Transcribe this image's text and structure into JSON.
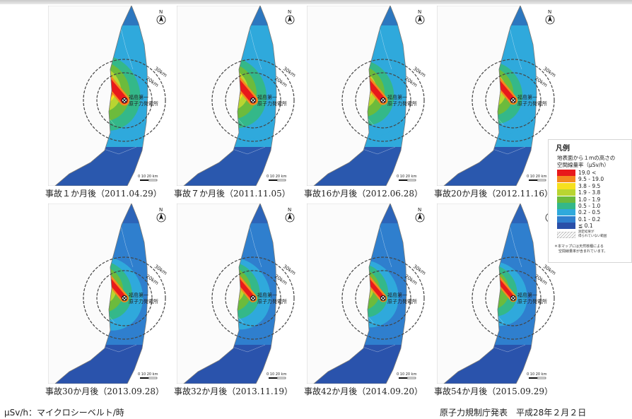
{
  "maps": [
    {
      "caption": "事故１か月後（2011.04.29）",
      "intensity": 1.0,
      "scale_text": "0  10  20 km",
      "north": "N",
      "label1": "福島第一",
      "label2": "原子力発電所",
      "ring1": "30km",
      "ring2": "20km"
    },
    {
      "caption": "事故７か月後（2011.11.05）",
      "intensity": 0.85,
      "scale_text": "0  10  20 km",
      "north": "N",
      "label1": "福島第一",
      "label2": "原子力発電所",
      "ring1": "30km",
      "ring2": "20km"
    },
    {
      "caption": "事故16か月後（2012.06.28）",
      "intensity": 0.7,
      "scale_text": "0  10  20 km",
      "north": "N",
      "label1": "福島第一",
      "label2": "原子力発電所",
      "ring1": "30km",
      "ring2": "20km"
    },
    {
      "caption": "事故20か月後（2012.11.16）",
      "intensity": 0.6,
      "scale_text": "0  10  20 km",
      "north": "N",
      "label1": "福島第一",
      "label2": "原子力発電所",
      "ring1": "30km",
      "ring2": "20km"
    },
    {
      "caption": "事故30か月後（2013.09.28）",
      "intensity": 0.5,
      "scale_text": "0  10  20 km",
      "north": "N",
      "label1": "福島第一",
      "label2": "原子力発電所",
      "ring1": "30km",
      "ring2": "20km"
    },
    {
      "caption": "事故32か月後（2013.11.19）",
      "intensity": 0.45,
      "scale_text": "0  10  20 km",
      "north": "N",
      "label1": "福島第一",
      "label2": "原子力発電所",
      "ring1": "30km",
      "ring2": "20km"
    },
    {
      "caption": "事故42か月後（2014.09.20）",
      "intensity": 0.35,
      "scale_text": "0  10  20 km",
      "north": "N",
      "label1": "福島第一",
      "label2": "原子力発電所",
      "ring1": "30km",
      "ring2": "20km"
    },
    {
      "caption": "事故54か月後（2015.09.29）",
      "intensity": 0.28,
      "scale_text": "0  10  20 km",
      "north": "N",
      "label1": "福島第一",
      "label2": "原子力発電所",
      "ring1": "30km",
      "ring2": "20km"
    }
  ],
  "legend": {
    "title": "凡例",
    "subtitle1": "地表面から１mの高さの",
    "subtitle2": "空間線量率（μSv/h）",
    "items": [
      {
        "label": "19.0 <",
        "color": "#e8191b"
      },
      {
        "label": "9.5 - 19.0",
        "color": "#f4891f"
      },
      {
        "label": "3.8 - 9.5",
        "color": "#f6e01f"
      },
      {
        "label": "1.9 - 3.8",
        "color": "#b9d531"
      },
      {
        "label": "1.0 - 1.9",
        "color": "#6cbb3c"
      },
      {
        "label": "0.5 - 1.0",
        "color": "#34b889"
      },
      {
        "label": "0.2 - 0.5",
        "color": "#2fa9dc"
      },
      {
        "label": "0.1 - 0.2",
        "color": "#2f7fce"
      },
      {
        "label": "≦ 0.1",
        "color": "#2a4fa8"
      }
    ],
    "hatch_label1": "測定結果が",
    "hatch_label2": "得られていない範囲",
    "note1": "＊本マップには天然核種による",
    "note2": "空間線量率が含まれています。"
  },
  "footer": {
    "unit_note": "μSv/h：マイクロシーベルト/時",
    "source": "原子力規制庁発表　平成28年２月２日"
  }
}
